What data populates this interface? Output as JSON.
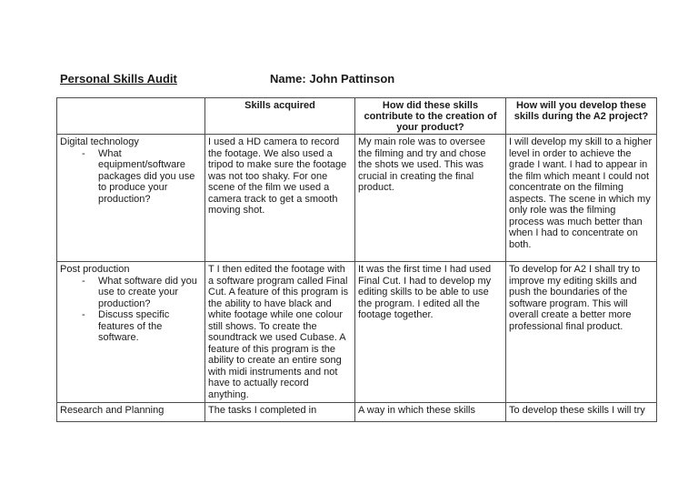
{
  "doc": {
    "title": "Personal Skills Audit",
    "name": "Name: John Pattinson"
  },
  "table": {
    "bullet_marker": "-",
    "headers": [
      "",
      "Skills acquired",
      "How did these skills contribute to the creation of your product?",
      "How will you develop these skills during the A2 project?"
    ],
    "rows": [
      {
        "topic": "Digital technology",
        "bullets": [
          "What equipment/software packages did you use to produce your production?"
        ],
        "skills": "I used a HD camera to record the footage. We also used a tripod to make sure the footage was not too shaky. For one scene of the film we used a camera track to get a smooth moving shot.",
        "contribution": "My main role was to oversee the filming and try and chose the shots we used. This was crucial in creating the final product.",
        "development": "I will develop my skill to a higher level in order to achieve the grade I want. I had to appear in the film which meant I could not concentrate on the filming aspects. The scene in which my only role was the filming process was much better than when I had to concentrate on both."
      },
      {
        "topic": "Post production",
        "bullets": [
          "What software did you use to create your production?",
          "Discuss specific features of the software."
        ],
        "skills": "T I then edited the footage with a software program called Final Cut. A feature of this program is the ability to have black and white footage while one colour still shows. To create the soundtrack we used Cubase. A feature of this program is the ability to create an entire song with midi instruments and not have to actually record anything.",
        "contribution": "It was the first time I had used Final Cut. I had to develop my editing skills to be able to use the program. I edited all the footage together.",
        "development": "To develop for A2 I shall try to improve my editing skills and push the boundaries of the software program. This will overall create a better more professional final product."
      },
      {
        "topic": "Research and Planning",
        "bullets": [],
        "skills": "The tasks I completed in",
        "contribution": "A way in which these skills",
        "development": "To develop these skills I will try"
      }
    ]
  }
}
